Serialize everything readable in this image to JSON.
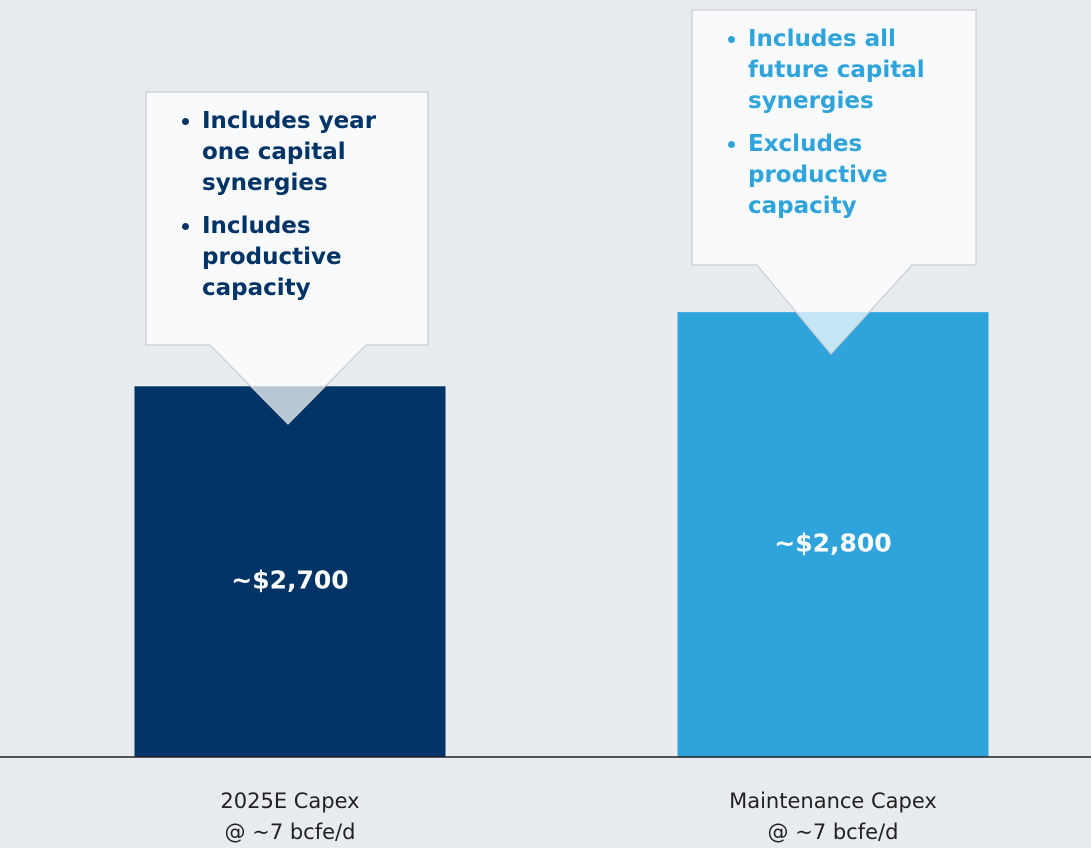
{
  "chart_data": {
    "type": "bar",
    "categories": [
      [
        "2025E Capex",
        "@ ~7 bcfe/d"
      ],
      [
        "Maintenance Capex",
        "@ ~7 bcfe/d"
      ]
    ],
    "values": [
      2700,
      2800
    ],
    "value_labels": [
      "~$2,700",
      "~$2,800"
    ],
    "colors": [
      "#003366",
      "#2fa4dc"
    ],
    "ylim": [
      2200,
      2900
    ],
    "annotations": [
      {
        "bullets": [
          "Includes year one capital synergies",
          "Includes productive capacity"
        ],
        "color": "#003366"
      },
      {
        "bullets": [
          "Includes all future capital synergies",
          "Excludes productive capacity"
        ],
        "color": "#2fa4dc"
      }
    ]
  }
}
